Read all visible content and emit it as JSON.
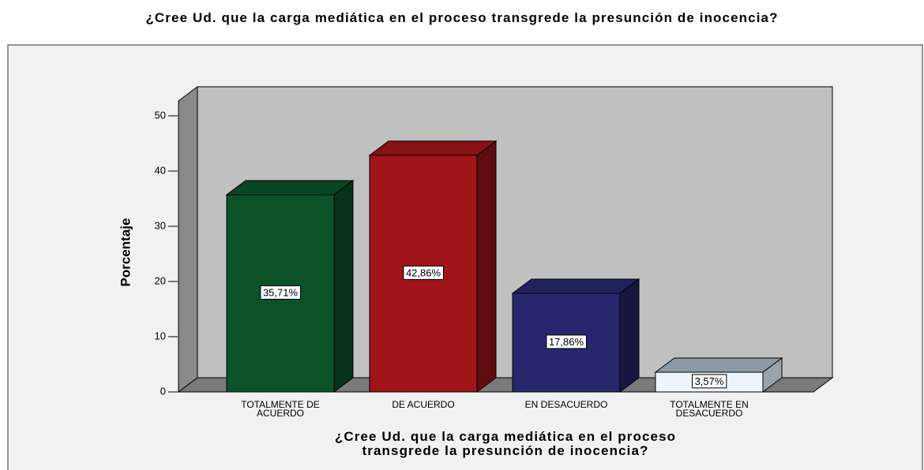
{
  "chart_data": {
    "type": "bar3d",
    "title": "¿Cree Ud. que la carga mediática en el proceso transgrede la presunción de inocencia?",
    "xlabel": "¿Cree Ud. que la carga mediática en el proceso transgrede la presunción de inocencia?",
    "ylabel": "Porcentaje",
    "categories": [
      "TOTALMENTE DE ACUERDO",
      "DE ACUERDO",
      "EN DESACUERDO",
      "TOTALMENTE EN DESACUERDO"
    ],
    "values": [
      35.71,
      42.86,
      17.86,
      3.57
    ],
    "value_labels": [
      "35,71%",
      "42,86%",
      "17,86%",
      "3,57%"
    ],
    "colors": [
      "#0b5229",
      "#a0141a",
      "#27276e",
      "#eef4fb"
    ],
    "ylim": [
      0,
      52.7
    ],
    "yticks": [
      0,
      10,
      20,
      30,
      40,
      50
    ]
  }
}
